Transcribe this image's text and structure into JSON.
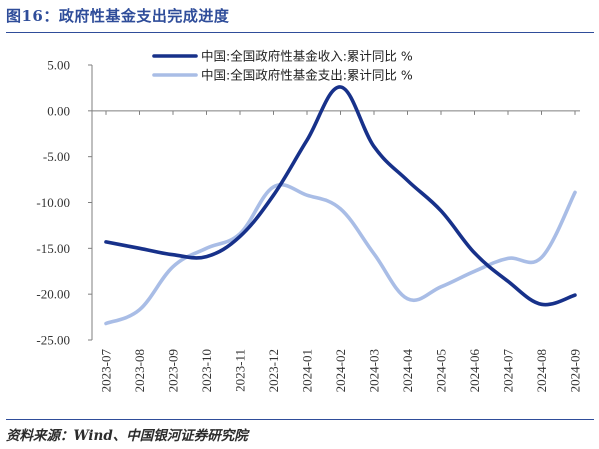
{
  "header": {
    "title": "图16：政府性基金支出完成进度"
  },
  "footer": {
    "source": "资料来源：Wind、中国银河证券研究院"
  },
  "colors": {
    "series_revenue": "#17318a",
    "series_expenditure": "#a9bde6",
    "accent": "#2f4d9a"
  },
  "chart_data": {
    "type": "line",
    "x": [
      "2023-07",
      "2023-08",
      "2023-09",
      "2023-10",
      "2023-11",
      "2023-12",
      "2024-01",
      "2024-02",
      "2024-03",
      "2024-04",
      "2024-05",
      "2024-06",
      "2024-07",
      "2024-08",
      "2024-09"
    ],
    "ylim": [
      -25,
      5
    ],
    "yticks": [
      5,
      0,
      -5,
      -10,
      -15,
      -20,
      -25
    ],
    "ytick_labels": [
      "5.00",
      "0.00",
      "-5.00",
      "-10.00",
      "-15.00",
      "-20.00",
      "-25.00"
    ],
    "series": [
      {
        "name": "中国:全国政府性基金收入:累计同比 %",
        "values": [
          -14.3,
          -15.0,
          -15.7,
          -15.9,
          -13.7,
          -9.2,
          -3.2,
          2.6,
          -3.9,
          -7.6,
          -10.9,
          -15.5,
          -18.6,
          -21.1,
          -20.1
        ]
      },
      {
        "name": "中国:全国政府性基金支出:累计同比 %",
        "values": [
          -23.2,
          -21.7,
          -17.0,
          -15.0,
          -13.4,
          -8.3,
          -9.2,
          -10.7,
          -15.6,
          -20.5,
          -19.2,
          -17.5,
          -16.1,
          -16.0,
          -8.9
        ]
      }
    ],
    "legend_position": "top-center",
    "grid": false
  }
}
